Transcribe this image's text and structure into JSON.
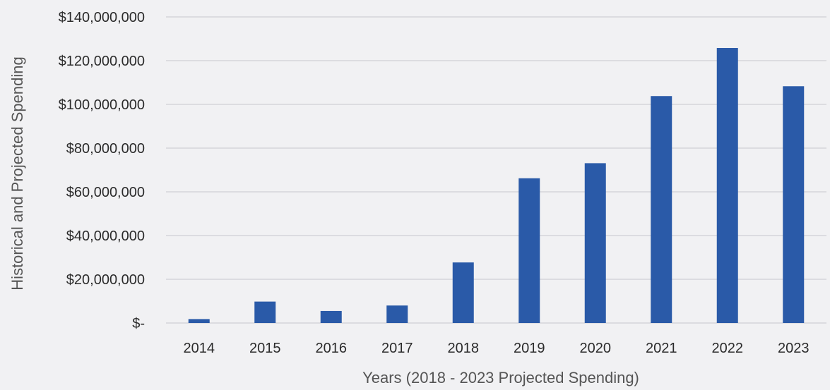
{
  "chart_data": {
    "type": "bar",
    "categories": [
      "2014",
      "2015",
      "2016",
      "2017",
      "2018",
      "2019",
      "2020",
      "2021",
      "2022",
      "2023"
    ],
    "values": [
      1800000,
      9800000,
      5500000,
      8000000,
      27700000,
      66200000,
      73100000,
      103800000,
      125800000,
      108300000
    ],
    "title": "",
    "xlabel": "Years (2018 - 2023 Projected Spending)",
    "ylabel": "Historical and Projected Spending",
    "ylim": [
      0,
      140000000
    ],
    "yticks": [
      {
        "value": 0,
        "label": "$-"
      },
      {
        "value": 20000000,
        "label": "$20,000,000"
      },
      {
        "value": 40000000,
        "label": "$40,000,000"
      },
      {
        "value": 60000000,
        "label": "$60,000,000"
      },
      {
        "value": 80000000,
        "label": "$80,000,000"
      },
      {
        "value": 100000000,
        "label": "$100,000,000"
      },
      {
        "value": 120000000,
        "label": "$120,000,000"
      },
      {
        "value": 140000000,
        "label": "$140,000,000"
      }
    ],
    "grid": true,
    "legend": "none",
    "colors": {
      "bar": "#2a5aa8",
      "grid": "#d6d6da",
      "background": "#f1f1f3"
    }
  }
}
